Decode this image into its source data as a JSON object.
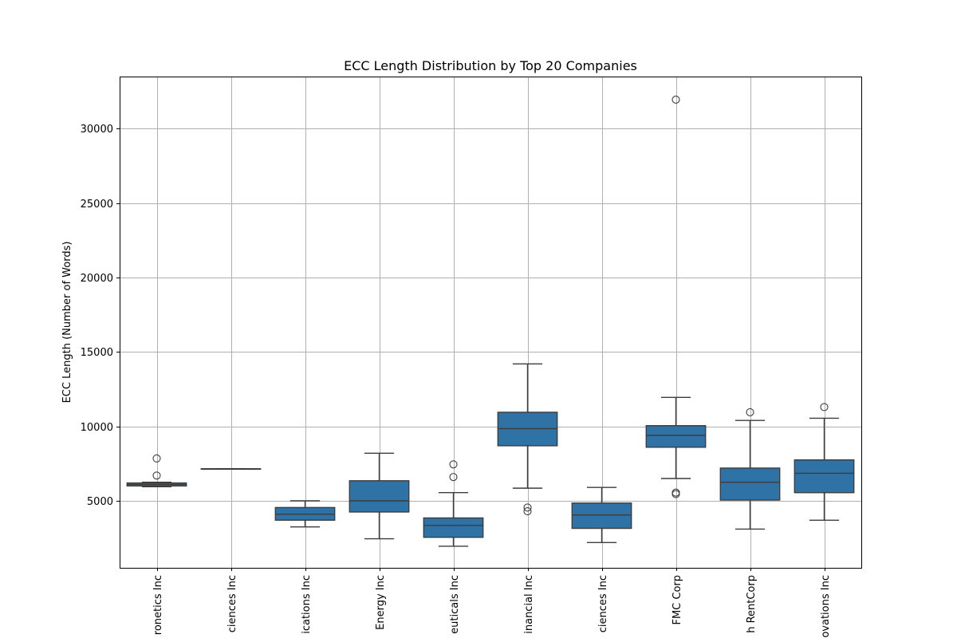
{
  "chart_data": {
    "type": "box",
    "title": "ECC Length Distribution by Top 20 Companies",
    "xlabel": "",
    "ylabel": "ECC Length (Number of Words)",
    "ylim": [
      500,
      33500
    ],
    "yticks": [
      5000,
      10000,
      15000,
      20000,
      25000,
      30000
    ],
    "grid": true,
    "box_color": "#2f72a6",
    "categories": [
      "ronetics Inc",
      "ciences Inc",
      "ications Inc",
      "Energy Inc",
      "eutical​s Inc",
      "inancial Inc",
      "ciences Inc",
      "FMC Corp",
      "h RentCorp",
      "ovations Inc"
    ],
    "boxes": [
      {
        "whislo": 5950,
        "q1": 6000,
        "med": 6100,
        "q3": 6200,
        "whishi": 6250,
        "fliers": [
          6700,
          7850
        ]
      },
      {
        "whislo": 7150,
        "q1": 7150,
        "med": 7150,
        "q3": 7150,
        "whishi": 7150,
        "fliers": []
      },
      {
        "whislo": 3250,
        "q1": 3700,
        "med": 4100,
        "q3": 4550,
        "whishi": 5000,
        "fliers": []
      },
      {
        "whislo": 2450,
        "q1": 4250,
        "med": 5000,
        "q3": 6350,
        "whishi": 8200,
        "fliers": []
      },
      {
        "whislo": 1950,
        "q1": 2550,
        "med": 3350,
        "q3": 3850,
        "whishi": 5550,
        "fliers": [
          6600,
          7450
        ]
      },
      {
        "whislo": 5850,
        "q1": 8700,
        "med": 9850,
        "q3": 10950,
        "whishi": 14200,
        "fliers": [
          4300,
          4550
        ]
      },
      {
        "whislo": 2200,
        "q1": 3150,
        "med": 4050,
        "q3": 4850,
        "whishi": 5900,
        "fliers": []
      },
      {
        "whislo": 6500,
        "q1": 8600,
        "med": 9400,
        "q3": 10050,
        "whishi": 11950,
        "fliers": [
          5450,
          5550,
          31950
        ]
      },
      {
        "whislo": 3100,
        "q1": 5050,
        "med": 6250,
        "q3": 7200,
        "whishi": 10400,
        "fliers": [
          10950
        ]
      },
      {
        "whislo": 3700,
        "q1": 5550,
        "med": 6850,
        "q3": 7750,
        "whishi": 10550,
        "fliers": [
          11300
        ]
      }
    ]
  }
}
